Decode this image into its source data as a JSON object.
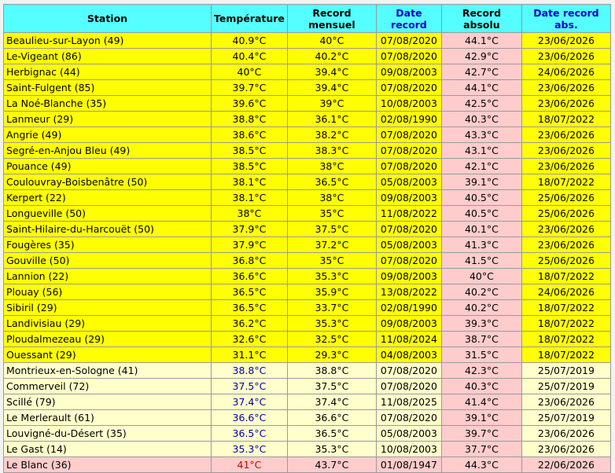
{
  "table": {
    "headers": [
      "Station",
      "Température",
      "Record\nmensuel",
      "Date\nrecord",
      "Record\nabsolu",
      "Date record\nabs."
    ],
    "rows": [
      [
        "Beaulieu-sur-Layon (49)",
        "40.9°C",
        "40°C",
        "07/08/2020",
        "44.1°C",
        "23/06/2026"
      ],
      [
        "Le-Vigeant (86)",
        "40.4°C",
        "40.2°C",
        "07/08/2020",
        "42.9°C",
        "23/06/2026"
      ],
      [
        "Herbignac (44)",
        "40°C",
        "39.4°C",
        "09/08/2003",
        "42.7°C",
        "24/06/2026"
      ],
      [
        "Saint-Fulgent (85)",
        "39.7°C",
        "39.4°C",
        "07/08/2020",
        "44.1°C",
        "23/06/2026"
      ],
      [
        "La Noé-Blanche (35)",
        "39.6°C",
        "39°C",
        "10/08/2003",
        "42.5°C",
        "23/06/2026"
      ],
      [
        "Lanmeur (29)",
        "38.8°C",
        "36.1°C",
        "02/08/1990",
        "40.3°C",
        "18/07/2022"
      ],
      [
        "Angrie (49)",
        "38.6°C",
        "38.2°C",
        "07/08/2020",
        "43.3°C",
        "23/06/2026"
      ],
      [
        "Segré-en-Anjou Bleu (49)",
        "38.5°C",
        "38.3°C",
        "07/08/2020",
        "43.1°C",
        "23/06/2026"
      ],
      [
        "Pouance (49)",
        "38.5°C",
        "38°C",
        "07/08/2020",
        "42.1°C",
        "23/06/2026"
      ],
      [
        "Coulouvray-Boisbenâtre (50)",
        "38.1°C",
        "36.5°C",
        "05/08/2003",
        "39.1°C",
        "18/07/2022"
      ],
      [
        "Kerpert (22)",
        "38.1°C",
        "38°C",
        "09/08/2003",
        "40.5°C",
        "25/06/2026"
      ],
      [
        "Longueville (50)",
        "38°C",
        "35°C",
        "11/08/2022",
        "40.5°C",
        "25/06/2026"
      ],
      [
        "Saint-Hilaire-du-Harcouët (50)",
        "37.9°C",
        "37.5°C",
        "07/08/2020",
        "40.1°C",
        "23/06/2026"
      ],
      [
        "Fougères (35)",
        "37.9°C",
        "37.2°C",
        "05/08/2003",
        "41.3°C",
        "23/06/2026"
      ],
      [
        "Gouville (50)",
        "36.8°C",
        "35°C",
        "07/08/2020",
        "41.5°C",
        "25/06/2026"
      ],
      [
        "Lannion (22)",
        "36.6°C",
        "35.3°C",
        "09/08/2003",
        "40°C",
        "18/07/2022"
      ],
      [
        "Plouay (56)",
        "36.5°C",
        "35.9°C",
        "13/08/2022",
        "40.2°C",
        "24/06/2026"
      ],
      [
        "Sibiril (29)",
        "36.5°C",
        "33.7°C",
        "02/08/1990",
        "40.2°C",
        "18/07/2022"
      ],
      [
        "Landivisiau (29)",
        "36.2°C",
        "35.3°C",
        "09/08/2003",
        "39.3°C",
        "18/07/2022"
      ],
      [
        "Ploudalmezeau (29)",
        "32.6°C",
        "32.5°C",
        "11/08/2024",
        "38.7°C",
        "18/07/2022"
      ],
      [
        "Ouessant (29)",
        "31.1°C",
        "29.3°C",
        "04/08/2003",
        "31.5°C",
        "18/07/2022"
      ],
      [
        "Montrieux-en-Sologne (41)",
        "38.8°C",
        "38.8°C",
        "07/08/2020",
        "42.3°C",
        "25/07/2019"
      ],
      [
        "Commerveil (72)",
        "37.5°C",
        "37.5°C",
        "07/08/2020",
        "40.3°C",
        "25/07/2019"
      ],
      [
        "Scillé (79)",
        "37.4°C",
        "37.4°C",
        "11/08/2025",
        "41.4°C",
        "23/06/2026"
      ],
      [
        "Le Merlerault (61)",
        "36.6°C",
        "36.6°C",
        "07/08/2020",
        "39.1°C",
        "25/07/2019"
      ],
      [
        "Louvigné-du-Désert (35)",
        "36.5°C",
        "36.5°C",
        "05/08/2003",
        "39.7°C",
        "23/06/2026"
      ],
      [
        "Le Gast (14)",
        "35.3°C",
        "35.3°C",
        "10/08/2003",
        "37.7°C",
        "23/06/2026"
      ],
      [
        "Le Blanc (36)",
        "41°C",
        "43.7°C",
        "01/08/1947",
        "44.3°C",
        "22/06/2026"
      ]
    ]
  }
}
